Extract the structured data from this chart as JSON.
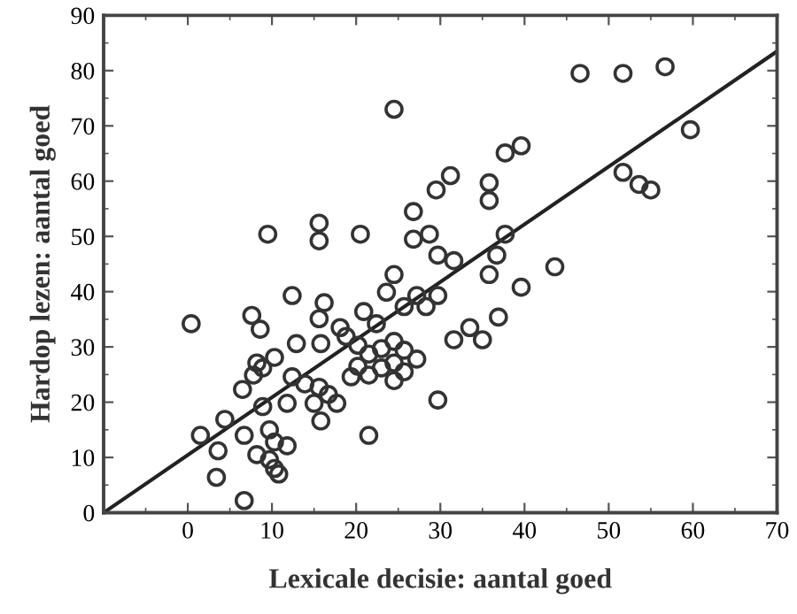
{
  "chart_data": {
    "type": "scatter",
    "xlabel": "Lexicale decisie: aantal goed",
    "ylabel": "Hardop lezen: aantal goed",
    "xlim": [
      -10,
      70
    ],
    "xticks": [
      0,
      10,
      20,
      30,
      40,
      50,
      60,
      70
    ],
    "ylim": [
      0,
      90
    ],
    "yticks": [
      0,
      10,
      20,
      30,
      40,
      50,
      60,
      70,
      80,
      90
    ],
    "grid": false,
    "series": [
      {
        "marker": "circle",
        "color": "#333333",
        "x": [
          9.5,
          15.6,
          15.6,
          20.5,
          24.5,
          26.8,
          29.5,
          31.2,
          26.8,
          28.7,
          29.7,
          46.6,
          51.7,
          56.7,
          59.7,
          51.7,
          53.6,
          55,
          37.7,
          39.6,
          35.8,
          35.8,
          37.7,
          36.7,
          31.6,
          43.6,
          35.8,
          39.6,
          28.3,
          29.7,
          36.9,
          33.5,
          31.6,
          35,
          29.7,
          0.4,
          7.6,
          8.6,
          12.4,
          24.5,
          23.6,
          16.2,
          15.6,
          20.9,
          18.1,
          15.8,
          12.9,
          10.3,
          8.2,
          8.9,
          7.8,
          12.4,
          13.9,
          6.5,
          15.6,
          16.7,
          15,
          17.7,
          11.8,
          8.9,
          15.8,
          21.5,
          1.5,
          4.4,
          6.7,
          3.6,
          9.7,
          10.3,
          8.2,
          9.7,
          10.3,
          10.8,
          11.8,
          3.4,
          6.7,
          18.8,
          20.2,
          21.5,
          23,
          24.5,
          25.7,
          20.2,
          21.5,
          23,
          24.5,
          25.7,
          27.2,
          19.4,
          24.5,
          27.2,
          25.7,
          22.4
        ],
        "values": [
          50.4,
          52.4,
          49.2,
          50.4,
          73,
          54.5,
          58.4,
          61,
          49.5,
          50.4,
          46.6,
          79.5,
          79.5,
          80.7,
          69.3,
          61.6,
          59.4,
          58.4,
          65.1,
          66.4,
          59.7,
          56.5,
          50.4,
          46.6,
          45.6,
          44.5,
          43.1,
          40.8,
          37.3,
          39.3,
          35.4,
          33.5,
          31.3,
          31.3,
          20.4,
          34.2,
          35.7,
          33.2,
          39.3,
          43.1,
          39.9,
          38,
          35.1,
          36.4,
          33.5,
          30.6,
          30.6,
          28.1,
          27.1,
          26.2,
          24.9,
          24.6,
          23.3,
          22.3,
          22.7,
          21.4,
          19.8,
          19.8,
          19.8,
          19.2,
          16.6,
          14,
          14,
          16.9,
          14,
          11.2,
          15,
          12.8,
          10.5,
          9.6,
          8,
          7,
          12.1,
          6.4,
          2.2,
          31.9,
          30.3,
          28.7,
          29.7,
          31,
          29.4,
          26.5,
          24.9,
          26.2,
          27.1,
          25.5,
          27.8,
          24.6,
          23.9,
          39.3,
          37.3,
          34.2
        ]
      },
      {
        "type": "line",
        "color": "#222222",
        "marker": "none",
        "line_style": "solid",
        "x": [
          -10,
          70
        ],
        "values": [
          0,
          83.5
        ]
      }
    ]
  }
}
